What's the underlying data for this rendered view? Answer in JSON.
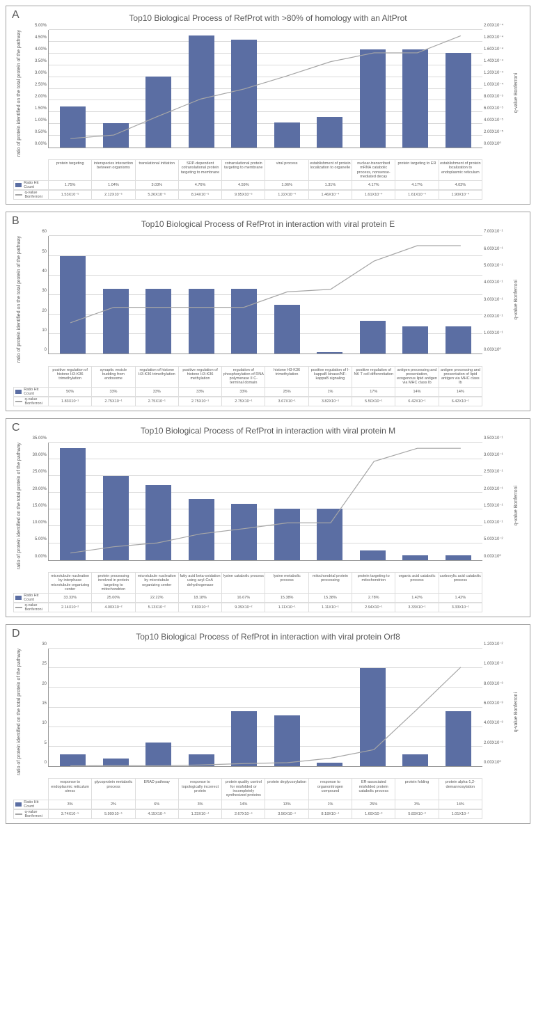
{
  "panels": [
    {
      "letter": "A",
      "title": "Top10 Biological Process of RefProt with >80% of homology with an AltProt",
      "y_left_label": "ratio of protein identified on the total protein of the\npathway",
      "y_right_label": "q-value Bonferroni",
      "bar_color": "#5b6ea3",
      "line_color": "#a6a6a6",
      "grid_color": "#d9d9d9",
      "y_left_max": 5.0,
      "y_left_ticks": [
        "0.00%",
        "0.50%",
        "1.00%",
        "1.50%",
        "2.00%",
        "2.50%",
        "3.00%",
        "3.50%",
        "4.00%",
        "4.50%",
        "5.00%"
      ],
      "y_right_max": 0.0002,
      "y_right_ticks": [
        "0.00X10⁰",
        "2.00X10⁻⁵",
        "4.00X10⁻⁵",
        "6.00X10⁻⁵",
        "8.00X10⁻⁵",
        "1.00X10⁻⁴",
        "1.20X10⁻⁴",
        "1.40X10⁻⁴",
        "1.60X10⁻⁴",
        "1.80X10⁻⁴",
        "2.00X10⁻⁴"
      ],
      "categories": [
        "protein targeting",
        "interspecies interaction between organisms",
        "translational initiation",
        "SRP-dependent cotranslational protein targeting to membrane",
        "cotranslational protein targeting to membrane",
        "viral process",
        "establishment of protein localization to organelle",
        "nuclear-transcribed mRNA catabolic process, nonsense-mediated decay",
        "protein targeting to ER",
        "establishment of protein localization to endoplasmic reticulum"
      ],
      "ratio_values": [
        1.75,
        1.04,
        3.03,
        4.76,
        4.59,
        1.06,
        1.31,
        4.17,
        4.17,
        4.03
      ],
      "ratio_labels": [
        "1.75%",
        "1.04%",
        "3.03%",
        "4.76%",
        "4.59%",
        "1.06%",
        "1.31%",
        "4.17%",
        "4.17%",
        "4.03%"
      ],
      "q_values": [
        1.53e-05,
        2.12e-05,
        5.26e-05,
        8.24e-05,
        9.95e-05,
        0.000122,
        0.000146,
        0.000161,
        0.000161,
        0.00019
      ],
      "q_labels": [
        "1.53X10⁻⁵",
        "2.12X10⁻⁵",
        "5.26X10⁻⁵",
        "8.24X10⁻⁵",
        "9.95X10⁻⁵",
        "1.22X10⁻⁴",
        "1.46X10⁻⁴",
        "1.61X10⁻⁴",
        "1.61X10⁻⁴",
        "1.90X10⁻⁴"
      ]
    },
    {
      "letter": "B",
      "title": "Top10 Biological Process of RefProt in interaction with viral protein E",
      "y_left_label": "ratio of protein identified on the total protein of the\npathway",
      "y_right_label": "q-value Bonferroni",
      "bar_color": "#5b6ea3",
      "line_color": "#a6a6a6",
      "grid_color": "#d9d9d9",
      "y_left_max": 60,
      "y_left_ticks": [
        "0",
        "10",
        "20",
        "30",
        "40",
        "50",
        "60"
      ],
      "y_right_max": 0.7,
      "y_right_ticks": [
        "0.00X10⁰",
        "1.00X10⁻¹",
        "2.00X10⁻¹",
        "3.00X10⁻¹",
        "4.00X10⁻¹",
        "5.00X10⁻¹",
        "6.00X10⁻¹",
        "7.00X10⁻¹"
      ],
      "categories": [
        "positive regulation of histone H3-K36 trimethylation",
        "synaptic vesicle budding from endosome",
        "regulation of histone H3-K36 trimethylation",
        "positive regulation of histone H3-K36 methylation",
        "regulation of phosphorylation of RNA polymerase II C-terminal domain",
        "histone H3-K36 trimethylation",
        "positive regulation of I-kappaB kinase/NF-kappaB signaling",
        "positive regulation of NK T cell differentiation",
        "antigen processing and presentation, exogenous lipid antigen via MHC class Ib",
        "antigen processing and presentation of lipid antigen via MHC class Ib"
      ],
      "ratio_values": [
        50,
        33,
        33,
        33,
        33,
        25,
        1,
        17,
        14,
        14
      ],
      "ratio_labels": [
        "50%",
        "33%",
        "33%",
        "33%",
        "33%",
        "25%",
        "1%",
        "17%",
        "14%",
        "14%"
      ],
      "q_values": [
        0.183,
        0.275,
        0.275,
        0.275,
        0.275,
        0.367,
        0.382,
        0.55,
        0.642,
        0.642
      ],
      "q_labels": [
        "1.83X10⁻¹",
        "2.75X10⁻¹",
        "2.75X10⁻¹",
        "2.75X10⁻¹",
        "2.75X10⁻¹",
        "3.67X10⁻¹",
        "3.82X10⁻¹",
        "5.50X10⁻¹",
        "6.42X10⁻¹",
        "6.42X10⁻¹"
      ]
    },
    {
      "letter": "C",
      "title": "Top10 Biological Process of RefProt in interaction with viral protein M",
      "y_left_label": "ratio of protein identified on the total protein of the\npathway",
      "y_right_label": "q-value Bonferroni",
      "bar_color": "#5b6ea3",
      "line_color": "#a6a6a6",
      "grid_color": "#d9d9d9",
      "y_left_max": 35,
      "y_left_ticks": [
        "0.00%",
        "5.00%",
        "10.00%",
        "15.00%",
        "20.00%",
        "25.00%",
        "30.00%",
        "35.00%"
      ],
      "y_right_max": 0.35,
      "y_right_ticks": [
        "0.00X10⁰",
        "5.00X10⁻²",
        "1.00X10⁻¹",
        "1.50X10⁻¹",
        "2.00X10⁻¹",
        "2.50X10⁻¹",
        "3.00X10⁻¹",
        "3.50X10⁻¹"
      ],
      "categories": [
        "microtubule nucleation by interphase microtubule organizing center",
        "protein processing involved in protein targeting to mitochondrion",
        "microtubule nucleation by microtubule organizing center",
        "fatty acid beta-oxidation using acyl-CoA dehydrogenase",
        "lysine catabolic process",
        "lysine metabolic process",
        "mitochondrial protein processing",
        "protein targeting to mitochondrion",
        "organic acid catabolic process",
        "carboxylic acid catabolic process"
      ],
      "ratio_values": [
        33.33,
        25.0,
        22.22,
        18.18,
        16.67,
        15.38,
        15.38,
        2.78,
        1.42,
        1.42
      ],
      "ratio_labels": [
        "33.33%",
        "25.00%",
        "22.22%",
        "18.18%",
        "16.67%",
        "15.38%",
        "15.38%",
        "2.78%",
        "1.42%",
        "1.42%"
      ],
      "q_values": [
        0.0214,
        0.04,
        0.0513,
        0.0783,
        0.0939,
        0.111,
        0.111,
        0.294,
        0.333,
        0.333
      ],
      "q_labels": [
        "2.14X10⁻²",
        "4.00X10⁻²",
        "5.13X10⁻²",
        "7.83X10⁻²",
        "9.39X10⁻²",
        "1.11X10⁻¹",
        "1.11X10⁻¹",
        "2.94X10⁻¹",
        "3.33X10⁻¹",
        "3.33X10⁻¹"
      ]
    },
    {
      "letter": "D",
      "title": "Top10 Biological Process of RefProt in interaction with viral protein Orf8",
      "y_left_label": "ratio of protein identified on the total protein of the\npathway",
      "y_right_label": "q-value Bonferroni",
      "bar_color": "#5b6ea3",
      "line_color": "#a6a6a6",
      "grid_color": "#d9d9d9",
      "y_left_max": 30,
      "y_left_ticks": [
        "0",
        "5",
        "10",
        "15",
        "20",
        "25",
        "30"
      ],
      "y_right_max": 0.012,
      "y_right_ticks": [
        "0.00X10⁰",
        "2.00X10⁻³",
        "4.00X10⁻³",
        "6.00X10⁻³",
        "8.00X10⁻³",
        "1.00X10⁻²",
        "1.20X10⁻²"
      ],
      "categories": [
        "response to endoplasmic reticulum stress",
        "glycoprotein metabolic process",
        "ERAD pathway",
        "response to topologically incorrect protein",
        "protein quality control for misfolded or incompletely synthesized proteins",
        "protein deglycosylation",
        "response to organonitrogen compound",
        "ER-associated misfolded protein catabolic process",
        "protein folding",
        "protein alpha-1,2-demannosylation"
      ],
      "ratio_values": [
        3,
        2,
        6,
        3,
        14,
        13,
        1,
        25,
        3,
        14
      ],
      "ratio_labels": [
        "3%",
        "2%",
        "6%",
        "3%",
        "14%",
        "13%",
        "1%",
        "25%",
        "3%",
        "14%"
      ],
      "q_values": [
        3.74e-05,
        5.99e-05,
        4.15e-05,
        0.000123,
        0.000267,
        0.000356,
        0.000818,
        0.00169,
        0.00583,
        0.0101
      ],
      "q_labels": [
        "3.74X10⁻⁵",
        "5.99X10⁻⁵",
        "4.15X10⁻⁵",
        "1.23X10⁻⁴",
        "2.67X10⁻⁴",
        "3.56X10⁻⁴",
        "8.18X10⁻⁴",
        "1.69X10⁻³",
        "5.83X10⁻³",
        "1.01X10⁻²"
      ]
    }
  ],
  "legend_ratio": "Ratio Hit Count",
  "legend_q": "q-value Bonferroni"
}
